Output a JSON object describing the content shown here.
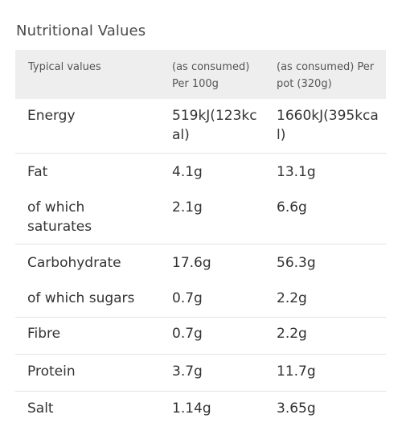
{
  "title": "Nutritional Values",
  "header": {
    "col1": "Typical values",
    "col2_line1": "(as consumed)",
    "col2_line2": "Per 100g",
    "col3_line1": "(as consumed) Per",
    "col3_line2": "pot (320g)"
  },
  "rows": [
    {
      "nutrient": "Energy",
      "per100": "519kJ(123kcal)",
      "perpot": "1660kJ(395kcal)"
    },
    {
      "nutrient": "Fat",
      "per100": "4.1g",
      "perpot": "13.1g"
    },
    {
      "nutrient": "of which saturates",
      "per100": "2.1g",
      "perpot": "6.6g"
    },
    {
      "nutrient": "Carbohydrate",
      "per100": "17.6g",
      "perpot": "56.3g"
    },
    {
      "nutrient": "of which sugars",
      "per100": "0.7g",
      "perpot": "2.2g"
    },
    {
      "nutrient": "Fibre",
      "per100": "0.7g",
      "perpot": "2.2g"
    },
    {
      "nutrient": "Protein",
      "per100": "3.7g",
      "perpot": "11.7g"
    },
    {
      "nutrient": "Salt",
      "per100": "1.14g",
      "perpot": "3.65g"
    }
  ],
  "colors": {
    "header_bg": "#eeeeee",
    "divider": "#e2e2e2",
    "text": "#333333"
  }
}
